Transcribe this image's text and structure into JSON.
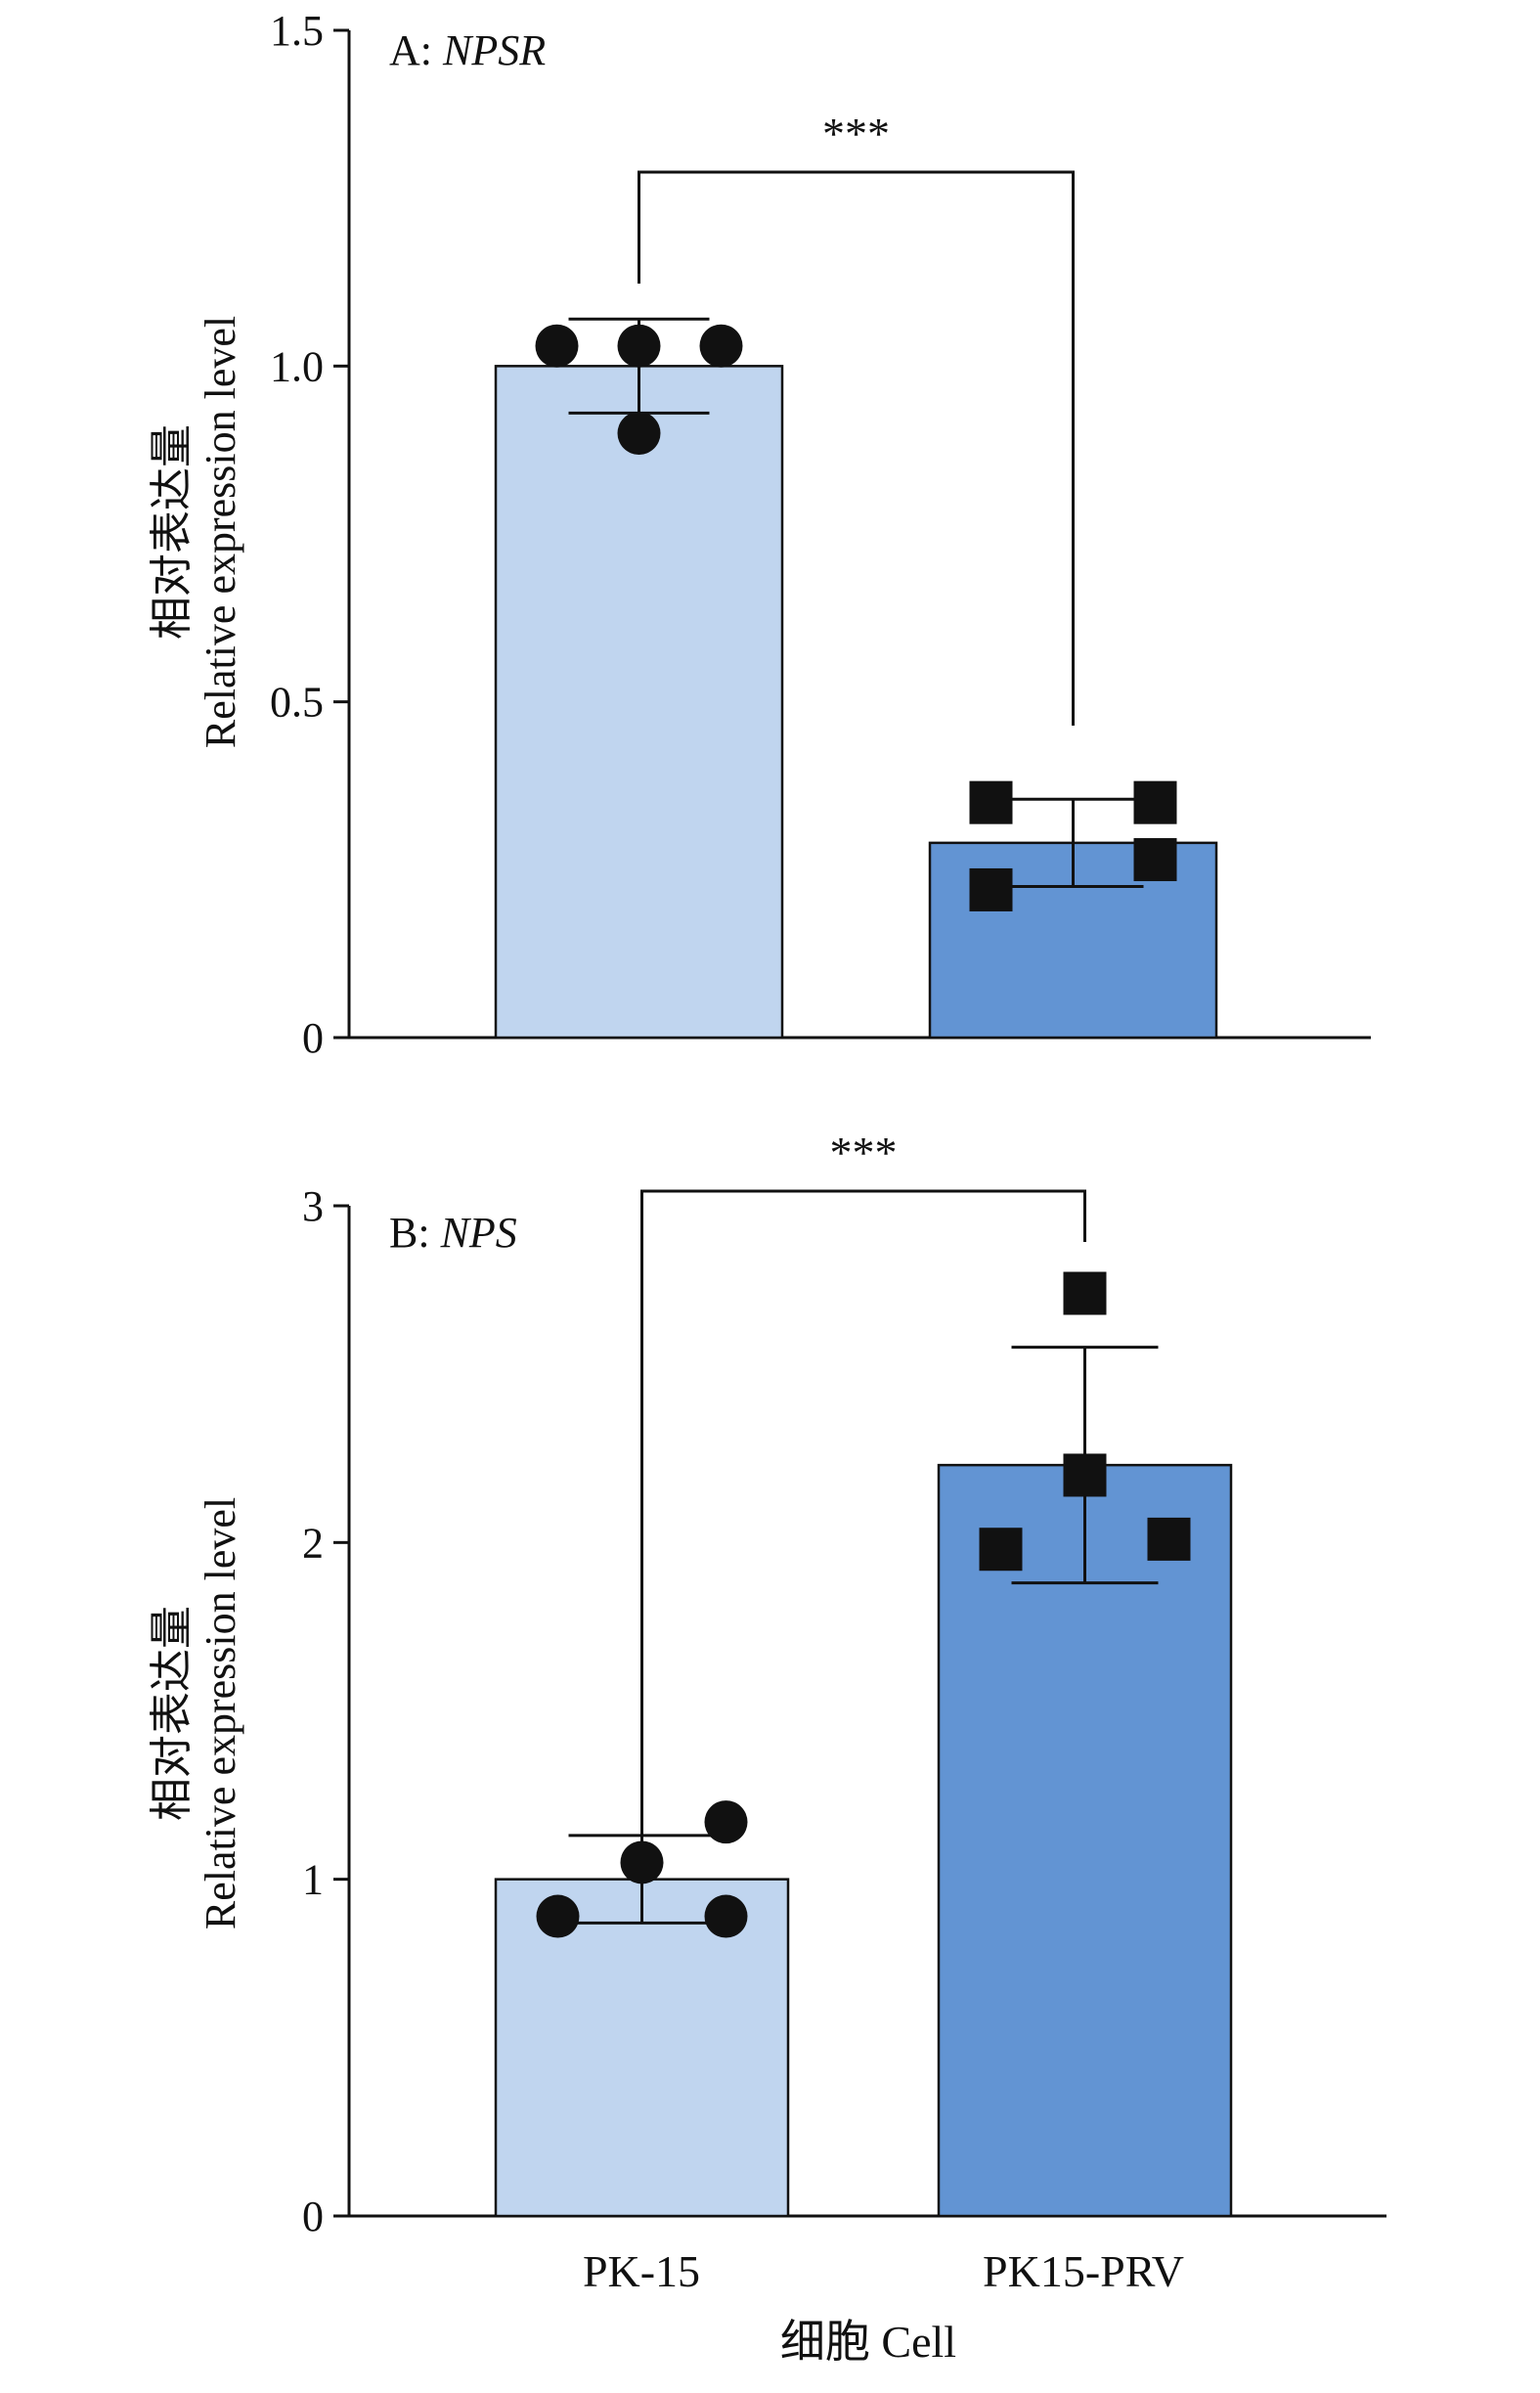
{
  "figure": {
    "xlabel": "细胞 Cell"
  },
  "chart_data": [
    {
      "type": "bar",
      "panel_prefix": "A: ",
      "gene": "NPSR",
      "ylabel_cn": "相对表达量",
      "ylabel_en": "Relative expression level",
      "ylim": [
        0,
        1.5
      ],
      "yticks": [
        0,
        0.5,
        1.0,
        1.5
      ],
      "ytick_labels": [
        "0",
        "0.5",
        "1.0",
        "1.5"
      ],
      "categories": [
        "PK-15",
        "PK15-PRV"
      ],
      "values": [
        1.0,
        0.29
      ],
      "errors": [
        0.07,
        0.065
      ],
      "points": [
        [
          1.03,
          1.03,
          1.03,
          0.9
        ],
        [
          0.35,
          0.35,
          0.265,
          0.22
        ]
      ],
      "significance": "***",
      "bar_colors": [
        "#c0d5ef",
        "#6294d3"
      ],
      "marker_shapes": [
        "circle",
        "square"
      ]
    },
    {
      "type": "bar",
      "panel_prefix": "B: ",
      "gene": "NPS",
      "ylabel_cn": "相对表达量",
      "ylabel_en": "Relative expression level",
      "ylim": [
        0,
        3
      ],
      "yticks": [
        0,
        1,
        2,
        3
      ],
      "ytick_labels": [
        "0",
        "1",
        "2",
        "3"
      ],
      "categories": [
        "PK-15",
        "PK15-PRV"
      ],
      "values": [
        1.0,
        2.23
      ],
      "errors": [
        0.13,
        0.35
      ],
      "points": [
        [
          0.89,
          1.05,
          1.17,
          0.89
        ],
        [
          2.74,
          2.2,
          1.98,
          2.01
        ]
      ],
      "significance": "***",
      "bar_colors": [
        "#c0d5ef",
        "#6294d3"
      ],
      "marker_shapes": [
        "circle",
        "square"
      ]
    }
  ]
}
